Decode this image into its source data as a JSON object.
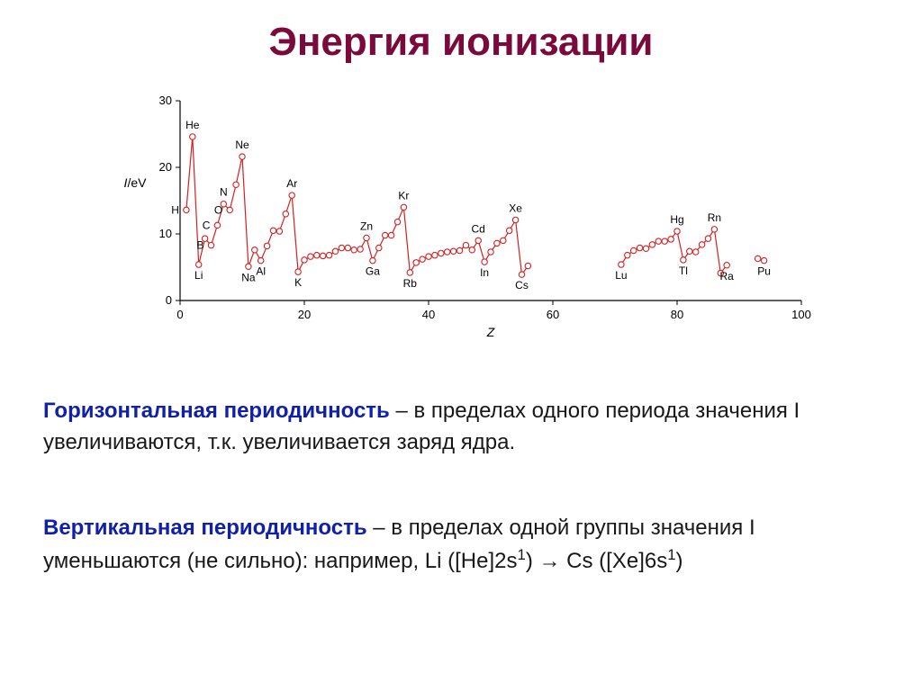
{
  "title": "Энергия ионизации",
  "chart": {
    "type": "line-scatter",
    "background_color": "#ffffff",
    "axis_color": "#000000",
    "line_color": "#d42020",
    "marker_stroke": "#d42020",
    "marker_fill": "#ffffff",
    "marker_radius": 3.2,
    "line_width": 1.2,
    "x": {
      "min": 0,
      "max": 100,
      "ticks": [
        0,
        20,
        40,
        60,
        80,
        100
      ],
      "label": "Z",
      "label_style": "italic"
    },
    "y": {
      "min": 0,
      "max": 30,
      "ticks": [
        0,
        10,
        20,
        30
      ],
      "label": "I",
      "unit": "/eV",
      "label_style": "italic"
    },
    "tick_fontsize": 13,
    "axis_label_fontsize": 14,
    "element_label_fontsize": 12,
    "data": [
      {
        "z": 1,
        "i": 13.6,
        "lbl": "H",
        "lp": "l"
      },
      {
        "z": 2,
        "i": 24.6,
        "lbl": "He",
        "lp": "t"
      },
      {
        "z": 3,
        "i": 5.4,
        "lbl": "Li",
        "lp": "b"
      },
      {
        "z": 4,
        "i": 9.3
      },
      {
        "z": 5,
        "i": 8.3,
        "lbl": "B",
        "lp": "l"
      },
      {
        "z": 6,
        "i": 11.3,
        "lbl": "C",
        "lp": "l"
      },
      {
        "z": 7,
        "i": 14.5,
        "lbl": "N",
        "lp": "t"
      },
      {
        "z": 8,
        "i": 13.6,
        "lbl": "O",
        "lp": "l"
      },
      {
        "z": 9,
        "i": 17.4
      },
      {
        "z": 10,
        "i": 21.6,
        "lbl": "Ne",
        "lp": "t"
      },
      {
        "z": 11,
        "i": 5.1,
        "lbl": "Na",
        "lp": "b"
      },
      {
        "z": 12,
        "i": 7.6
      },
      {
        "z": 13,
        "i": 6.0,
        "lbl": "Al",
        "lp": "b"
      },
      {
        "z": 14,
        "i": 8.2
      },
      {
        "z": 15,
        "i": 10.5
      },
      {
        "z": 16,
        "i": 10.4
      },
      {
        "z": 17,
        "i": 13.0
      },
      {
        "z": 18,
        "i": 15.8,
        "lbl": "Ar",
        "lp": "t"
      },
      {
        "z": 19,
        "i": 4.3,
        "lbl": "K",
        "lp": "b"
      },
      {
        "z": 20,
        "i": 6.1
      },
      {
        "z": 21,
        "i": 6.6
      },
      {
        "z": 22,
        "i": 6.8
      },
      {
        "z": 23,
        "i": 6.7
      },
      {
        "z": 24,
        "i": 6.8
      },
      {
        "z": 25,
        "i": 7.4
      },
      {
        "z": 26,
        "i": 7.9
      },
      {
        "z": 27,
        "i": 7.9
      },
      {
        "z": 28,
        "i": 7.6
      },
      {
        "z": 29,
        "i": 7.7
      },
      {
        "z": 30,
        "i": 9.4,
        "lbl": "Zn",
        "lp": "t"
      },
      {
        "z": 31,
        "i": 6.0,
        "lbl": "Ga",
        "lp": "b"
      },
      {
        "z": 32,
        "i": 7.9
      },
      {
        "z": 33,
        "i": 9.8
      },
      {
        "z": 34,
        "i": 9.8
      },
      {
        "z": 35,
        "i": 11.8
      },
      {
        "z": 36,
        "i": 14.0,
        "lbl": "Kr",
        "lp": "t"
      },
      {
        "z": 37,
        "i": 4.2,
        "lbl": "Rb",
        "lp": "b"
      },
      {
        "z": 38,
        "i": 5.7
      },
      {
        "z": 39,
        "i": 6.2
      },
      {
        "z": 40,
        "i": 6.6
      },
      {
        "z": 41,
        "i": 6.8
      },
      {
        "z": 42,
        "i": 7.1
      },
      {
        "z": 43,
        "i": 7.3
      },
      {
        "z": 44,
        "i": 7.4
      },
      {
        "z": 45,
        "i": 7.5
      },
      {
        "z": 46,
        "i": 8.3
      },
      {
        "z": 47,
        "i": 7.6
      },
      {
        "z": 48,
        "i": 9.0,
        "lbl": "Cd",
        "lp": "t"
      },
      {
        "z": 49,
        "i": 5.8,
        "lbl": "In",
        "lp": "b"
      },
      {
        "z": 50,
        "i": 7.3
      },
      {
        "z": 51,
        "i": 8.6
      },
      {
        "z": 52,
        "i": 9.0
      },
      {
        "z": 53,
        "i": 10.5
      },
      {
        "z": 54,
        "i": 12.1,
        "lbl": "Xe",
        "lp": "t"
      },
      {
        "z": 55,
        "i": 3.9,
        "lbl": "Cs",
        "lp": "b"
      },
      {
        "z": 56,
        "i": 5.2
      },
      {
        "z": 71,
        "i": 5.4,
        "lbl": "Lu",
        "lp": "b",
        "newseg": true
      },
      {
        "z": 72,
        "i": 6.8
      },
      {
        "z": 73,
        "i": 7.5
      },
      {
        "z": 74,
        "i": 7.9
      },
      {
        "z": 75,
        "i": 7.8
      },
      {
        "z": 76,
        "i": 8.4
      },
      {
        "z": 77,
        "i": 8.9
      },
      {
        "z": 78,
        "i": 8.9
      },
      {
        "z": 79,
        "i": 9.2
      },
      {
        "z": 80,
        "i": 10.4,
        "lbl": "Hg",
        "lp": "t"
      },
      {
        "z": 81,
        "i": 6.1,
        "lbl": "Tl",
        "lp": "b"
      },
      {
        "z": 82,
        "i": 7.4
      },
      {
        "z": 83,
        "i": 7.3
      },
      {
        "z": 84,
        "i": 8.4
      },
      {
        "z": 85,
        "i": 9.3
      },
      {
        "z": 86,
        "i": 10.7,
        "lbl": "Rn",
        "lp": "t"
      },
      {
        "z": 87,
        "i": 4.1
      },
      {
        "z": 88,
        "i": 5.3,
        "lbl": "Ra",
        "lp": "b"
      },
      {
        "z": 93,
        "i": 6.3,
        "newseg": true
      },
      {
        "z": 94,
        "i": 6.0,
        "lbl": "Pu",
        "lp": "b"
      }
    ]
  },
  "paragraphs": {
    "p1_term": "Горизонтальная периодичность",
    "p1_rest": " – в пределах одного периода значения I увеличиваются, т.к. увеличивается заряд ядра.",
    "p2_term": "Вертикальная периодичность",
    "p2_rest_before": " – в пределах одной группы значения I уменьшаются (не сильно): например, Li ([He]2s",
    "p2_sup1": "1",
    "p2_mid": ") → Cs ([Xe]6s",
    "p2_sup2": "1",
    "p2_after": ")"
  }
}
